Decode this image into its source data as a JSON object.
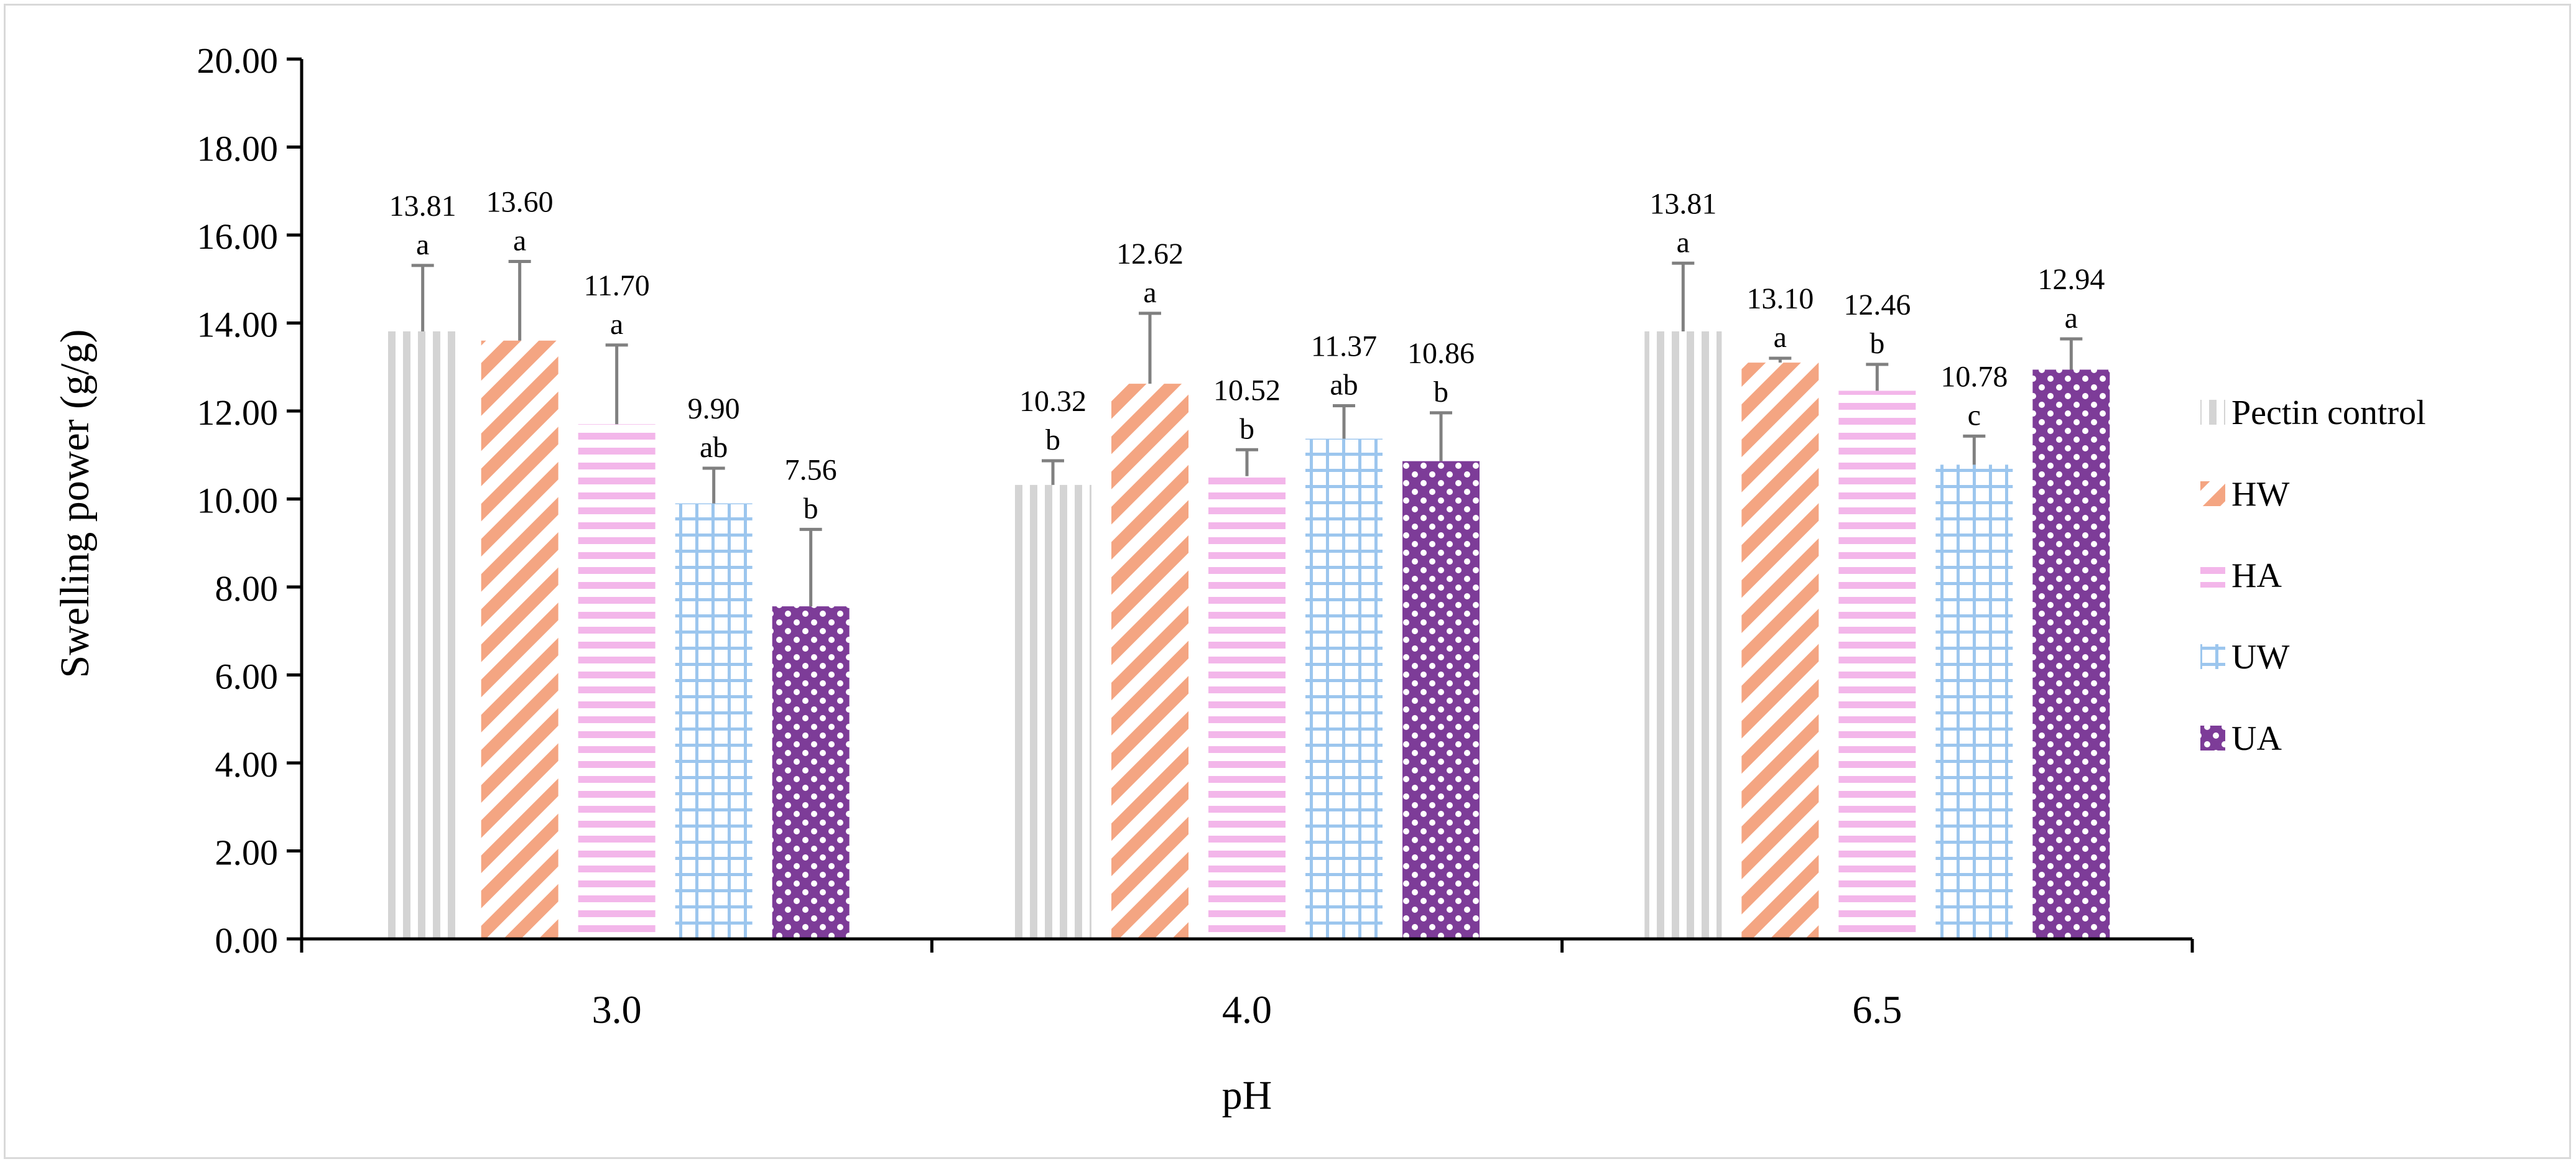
{
  "chart_data": {
    "type": "bar",
    "title": "",
    "xlabel": "pH",
    "ylabel": "Swelling power (g/g)",
    "ylim": [
      0,
      20
    ],
    "y_tick_step": 2,
    "y_tick_labels": [
      "0.00",
      "2.00",
      "4.00",
      "6.00",
      "8.00",
      "10.00",
      "12.00",
      "14.00",
      "16.00",
      "18.00",
      "20.00"
    ],
    "categories": [
      "3.0",
      "4.0",
      "6.5"
    ],
    "grid": false,
    "legend_position": "right",
    "series": [
      {
        "name": "Pectin control",
        "color": "#d4d4d4",
        "pattern": "vertical-lines",
        "values": [
          13.81,
          10.32,
          13.81
        ],
        "errors": [
          1.5,
          0.55,
          1.55
        ],
        "value_labels": [
          "13.81",
          "10.32",
          "13.81"
        ],
        "letters": [
          "a",
          "b",
          "a"
        ]
      },
      {
        "name": "HW",
        "color": "#f4a582",
        "pattern": "diagonal-lines",
        "values": [
          13.6,
          12.62,
          13.1
        ],
        "errors": [
          1.8,
          1.6,
          0.1
        ],
        "value_labels": [
          "13.60",
          "12.62",
          "13.10"
        ],
        "letters": [
          "a",
          "a",
          "a"
        ]
      },
      {
        "name": "HA",
        "color": "#f3b6ea",
        "pattern": "horizontal-lines",
        "values": [
          11.7,
          10.52,
          12.46
        ],
        "errors": [
          1.8,
          0.6,
          0.6
        ],
        "value_labels": [
          "11.70",
          "10.52",
          "12.46"
        ],
        "letters": [
          "a",
          "b",
          "b"
        ]
      },
      {
        "name": "UW",
        "color": "#9cc6ee",
        "pattern": "grid",
        "values": [
          9.9,
          11.37,
          10.78
        ],
        "errors": [
          0.8,
          0.75,
          0.65
        ],
        "value_labels": [
          "9.90",
          "11.37",
          "10.78"
        ],
        "letters": [
          "ab",
          "ab",
          "c"
        ]
      },
      {
        "name": "UA",
        "color": "#7d3c98",
        "pattern": "dots",
        "values": [
          7.56,
          10.86,
          12.94
        ],
        "errors": [
          1.75,
          1.1,
          0.7
        ],
        "value_labels": [
          "7.56",
          "10.86",
          "12.94"
        ],
        "letters": [
          "b",
          "b",
          "a"
        ]
      }
    ]
  }
}
